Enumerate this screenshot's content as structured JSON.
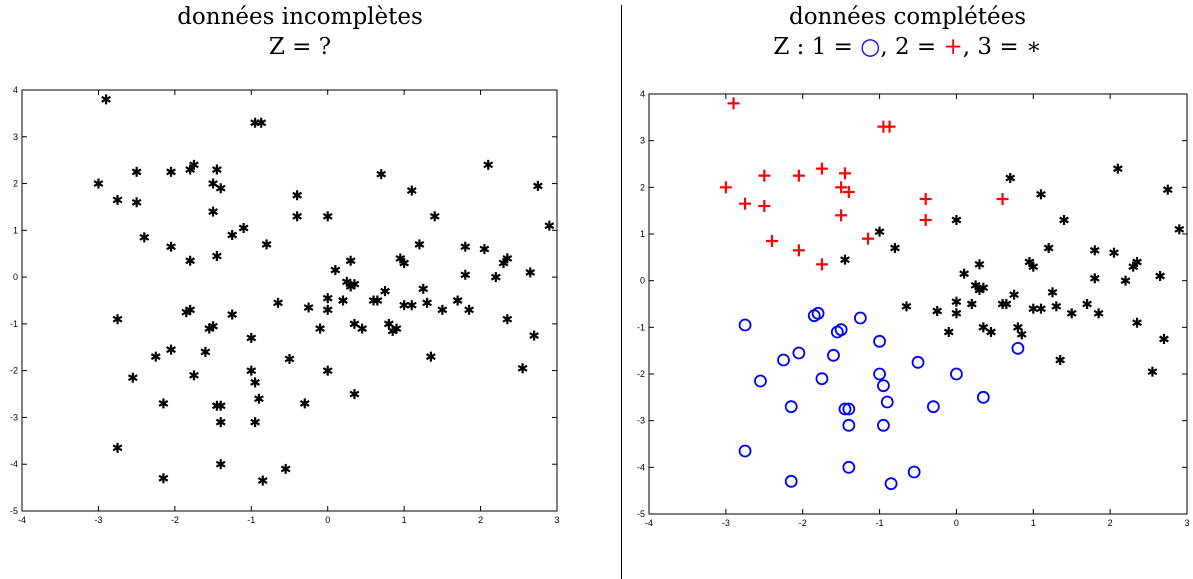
{
  "panels": [
    {
      "title_line1": "données incomplètes",
      "title_line2": "Z = ?",
      "chart_data": {
        "type": "scatter",
        "xlim": [
          -4,
          3
        ],
        "ylim": [
          -5,
          4
        ],
        "xticks": [
          -4,
          -3,
          -2,
          -1,
          0,
          1,
          2,
          3
        ],
        "yticks": [
          -5,
          -4,
          -3,
          -2,
          -1,
          0,
          1,
          2,
          3,
          4
        ],
        "grid": false,
        "series": [
          {
            "marker": "asterisk",
            "color": "#000000",
            "points": [
              [
                -2.9,
                3.8
              ],
              [
                -3.0,
                2.0
              ],
              [
                -2.75,
                1.65
              ],
              [
                -2.5,
                2.25
              ],
              [
                -2.5,
                1.6
              ],
              [
                -2.4,
                0.85
              ],
              [
                -2.05,
                2.25
              ],
              [
                -2.05,
                0.65
              ],
              [
                -1.8,
                2.3
              ],
              [
                -1.8,
                0.35
              ],
              [
                -1.75,
                2.4
              ],
              [
                -1.5,
                2.0
              ],
              [
                -1.45,
                2.3
              ],
              [
                -1.4,
                1.9
              ],
              [
                -1.5,
                1.4
              ],
              [
                -1.45,
                0.45
              ],
              [
                -1.25,
                0.9
              ],
              [
                -1.1,
                1.05
              ],
              [
                -0.95,
                3.3
              ],
              [
                -0.87,
                3.3
              ],
              [
                -0.8,
                0.7
              ],
              [
                -0.4,
                1.75
              ],
              [
                -0.4,
                1.3
              ],
              [
                0.0,
                1.3
              ],
              [
                -2.75,
                -0.9
              ],
              [
                -1.85,
                -0.75
              ],
              [
                -1.8,
                -0.7
              ],
              [
                -1.55,
                -1.1
              ],
              [
                -1.5,
                -1.05
              ],
              [
                -1.25,
                -0.8
              ],
              [
                -1.0,
                -1.3
              ],
              [
                -2.25,
                -1.7
              ],
              [
                -2.05,
                -1.55
              ],
              [
                -1.6,
                -1.6
              ],
              [
                -1.0,
                -2.0
              ],
              [
                -0.95,
                -2.25
              ],
              [
                -0.9,
                -2.6
              ],
              [
                -0.5,
                -1.75
              ],
              [
                -0.65,
                -0.55
              ],
              [
                -0.25,
                -0.65
              ],
              [
                -0.1,
                -1.1
              ],
              [
                0.0,
                -0.45
              ],
              [
                0.0,
                -0.7
              ],
              [
                0.0,
                -2.0
              ],
              [
                -2.55,
                -2.15
              ],
              [
                -1.75,
                -2.1
              ],
              [
                -2.15,
                -2.7
              ],
              [
                -1.45,
                -2.75
              ],
              [
                -1.4,
                -2.75
              ],
              [
                -1.4,
                -3.1
              ],
              [
                -0.95,
                -3.1
              ],
              [
                -0.3,
                -2.7
              ],
              [
                0.35,
                -2.5
              ],
              [
                -2.75,
                -3.65
              ],
              [
                -1.4,
                -4.0
              ],
              [
                -0.55,
                -4.1
              ],
              [
                -0.85,
                -4.35
              ],
              [
                -2.15,
                -4.3
              ],
              [
                0.1,
                0.15
              ],
              [
                0.3,
                0.35
              ],
              [
                0.25,
                -0.1
              ],
              [
                0.3,
                -0.2
              ],
              [
                0.35,
                -0.15
              ],
              [
                0.2,
                -0.5
              ],
              [
                0.35,
                -1.0
              ],
              [
                0.45,
                -1.1
              ],
              [
                0.6,
                -0.5
              ],
              [
                0.65,
                -0.5
              ],
              [
                0.7,
                2.2
              ],
              [
                0.75,
                -0.3
              ],
              [
                0.8,
                -1.0
              ],
              [
                0.85,
                -1.15
              ],
              [
                0.9,
                -1.1
              ],
              [
                0.95,
                0.4
              ],
              [
                1.0,
                0.3
              ],
              [
                1.0,
                -0.6
              ],
              [
                1.1,
                1.85
              ],
              [
                1.1,
                -0.6
              ],
              [
                1.2,
                0.7
              ],
              [
                1.25,
                -0.25
              ],
              [
                1.3,
                -0.55
              ],
              [
                1.35,
                -1.7
              ],
              [
                1.4,
                1.3
              ],
              [
                1.5,
                -0.7
              ],
              [
                1.7,
                -0.5
              ],
              [
                1.8,
                0.65
              ],
              [
                1.8,
                0.05
              ],
              [
                1.85,
                -0.7
              ],
              [
                2.05,
                0.6
              ],
              [
                2.1,
                2.4
              ],
              [
                2.2,
                0.0
              ],
              [
                2.3,
                0.3
              ],
              [
                2.35,
                0.4
              ],
              [
                2.35,
                -0.9
              ],
              [
                2.55,
                -1.95
              ],
              [
                2.65,
                0.1
              ],
              [
                2.7,
                -1.25
              ],
              [
                2.75,
                1.95
              ],
              [
                2.9,
                1.1
              ]
            ]
          }
        ]
      }
    },
    {
      "title_line1": "données complétées",
      "title_line2_parts": [
        "Z : 1 = ",
        "○",
        ", 2 = ",
        "+",
        ", 3 = ",
        "∗"
      ],
      "chart_data": {
        "type": "scatter",
        "xlim": [
          -4,
          3
        ],
        "ylim": [
          -5,
          4
        ],
        "xticks": [
          -4,
          -3,
          -2,
          -1,
          0,
          1,
          2,
          3
        ],
        "yticks": [
          -5,
          -4,
          -3,
          -2,
          -1,
          0,
          1,
          2,
          3,
          4
        ],
        "grid": false,
        "series": [
          {
            "marker": "circle",
            "color": "#0000ff",
            "points": [
              [
                -2.75,
                -0.95
              ],
              [
                -1.85,
                -0.75
              ],
              [
                -1.8,
                -0.7
              ],
              [
                -1.55,
                -1.1
              ],
              [
                -1.5,
                -1.05
              ],
              [
                -1.25,
                -0.8
              ],
              [
                -1.0,
                -1.3
              ],
              [
                -2.25,
                -1.7
              ],
              [
                -2.05,
                -1.55
              ],
              [
                -1.6,
                -1.6
              ],
              [
                -1.0,
                -2.0
              ],
              [
                -0.95,
                -2.25
              ],
              [
                -0.9,
                -2.6
              ],
              [
                -0.5,
                -1.75
              ],
              [
                0.0,
                -2.0
              ],
              [
                -2.55,
                -2.15
              ],
              [
                -1.75,
                -2.1
              ],
              [
                -2.15,
                -2.7
              ],
              [
                -1.45,
                -2.75
              ],
              [
                -1.4,
                -2.75
              ],
              [
                -1.4,
                -3.1
              ],
              [
                -0.95,
                -3.1
              ],
              [
                -0.3,
                -2.7
              ],
              [
                0.35,
                -2.5
              ],
              [
                -2.75,
                -3.65
              ],
              [
                -1.4,
                -4.0
              ],
              [
                -0.55,
                -4.1
              ],
              [
                -0.85,
                -4.35
              ],
              [
                -2.15,
                -4.3
              ],
              [
                0.8,
                -1.45
              ]
            ]
          },
          {
            "marker": "plus",
            "color": "#ff0000",
            "points": [
              [
                -2.9,
                3.8
              ],
              [
                -3.0,
                2.0
              ],
              [
                -2.75,
                1.65
              ],
              [
                -2.5,
                2.25
              ],
              [
                -2.5,
                1.6
              ],
              [
                -2.4,
                0.85
              ],
              [
                -2.05,
                2.25
              ],
              [
                -2.05,
                0.65
              ],
              [
                -1.75,
                2.4
              ],
              [
                -1.75,
                0.35
              ],
              [
                -1.5,
                2.0
              ],
              [
                -1.45,
                2.3
              ],
              [
                -1.4,
                1.9
              ],
              [
                -1.5,
                1.4
              ],
              [
                -1.15,
                0.9
              ],
              [
                -0.95,
                3.3
              ],
              [
                -0.87,
                3.3
              ],
              [
                -0.4,
                1.75
              ],
              [
                -0.4,
                1.3
              ],
              [
                0.6,
                1.75
              ]
            ]
          },
          {
            "marker": "asterisk",
            "color": "#000000",
            "points": [
              [
                -1.45,
                0.45
              ],
              [
                -1.0,
                1.05
              ],
              [
                -0.8,
                0.7
              ],
              [
                0.0,
                1.3
              ],
              [
                0.7,
                2.2
              ],
              [
                -0.65,
                -0.55
              ],
              [
                -0.25,
                -0.65
              ],
              [
                -0.1,
                -1.1
              ],
              [
                0.0,
                -0.45
              ],
              [
                0.0,
                -0.7
              ],
              [
                0.1,
                0.15
              ],
              [
                0.3,
                0.35
              ],
              [
                0.25,
                -0.1
              ],
              [
                0.3,
                -0.2
              ],
              [
                0.35,
                -0.15
              ],
              [
                0.2,
                -0.5
              ],
              [
                0.35,
                -1.0
              ],
              [
                0.45,
                -1.1
              ],
              [
                0.6,
                -0.5
              ],
              [
                0.65,
                -0.5
              ],
              [
                0.75,
                -0.3
              ],
              [
                0.8,
                -1.0
              ],
              [
                0.85,
                -1.15
              ],
              [
                0.95,
                0.4
              ],
              [
                1.0,
                0.3
              ],
              [
                1.0,
                -0.6
              ],
              [
                1.1,
                1.85
              ],
              [
                1.1,
                -0.6
              ],
              [
                1.2,
                0.7
              ],
              [
                1.25,
                -0.25
              ],
              [
                1.3,
                -0.55
              ],
              [
                1.35,
                -1.7
              ],
              [
                1.4,
                1.3
              ],
              [
                1.5,
                -0.7
              ],
              [
                1.7,
                -0.5
              ],
              [
                1.8,
                0.65
              ],
              [
                1.8,
                0.05
              ],
              [
                1.85,
                -0.7
              ],
              [
                2.05,
                0.6
              ],
              [
                2.1,
                2.4
              ],
              [
                2.2,
                0.0
              ],
              [
                2.3,
                0.3
              ],
              [
                2.35,
                0.4
              ],
              [
                2.35,
                -0.9
              ],
              [
                2.55,
                -1.95
              ],
              [
                2.65,
                0.1
              ],
              [
                2.7,
                -1.25
              ],
              [
                2.75,
                1.95
              ],
              [
                2.9,
                1.1
              ]
            ]
          }
        ]
      }
    }
  ]
}
